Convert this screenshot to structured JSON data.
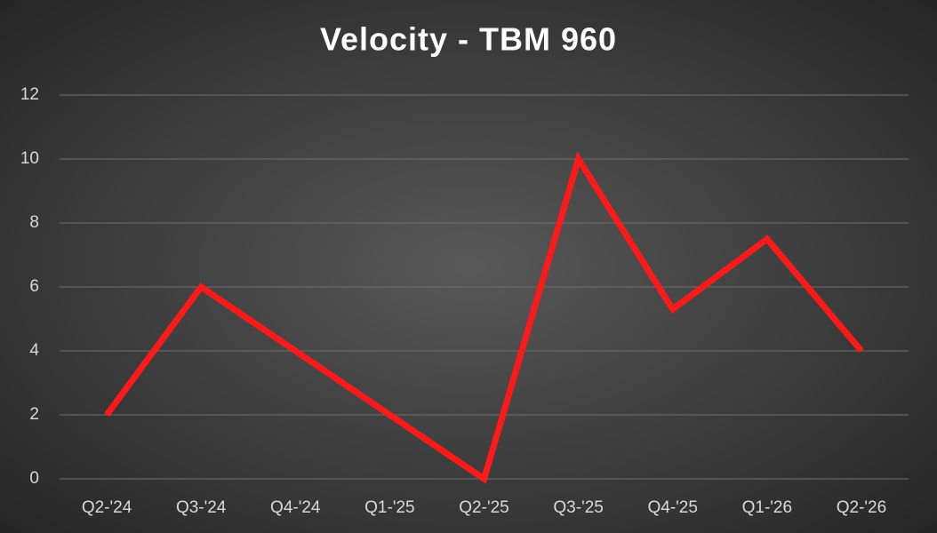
{
  "chart_data": {
    "type": "line",
    "title": "Velocity - TBM 960",
    "categories": [
      "Q2-'24",
      "Q3-'24",
      "Q4-'24",
      "Q1-'25",
      "Q2-'25",
      "Q3-'25",
      "Q4-'25",
      "Q1-'26",
      "Q2-'26"
    ],
    "values": [
      2,
      6,
      4,
      2,
      0,
      10,
      5.3,
      7.5,
      4
    ],
    "color": "#ff1a1a",
    "ylim": [
      0,
      12
    ],
    "yticks": [
      0,
      2,
      4,
      6,
      8,
      10,
      12
    ],
    "grid": true
  }
}
